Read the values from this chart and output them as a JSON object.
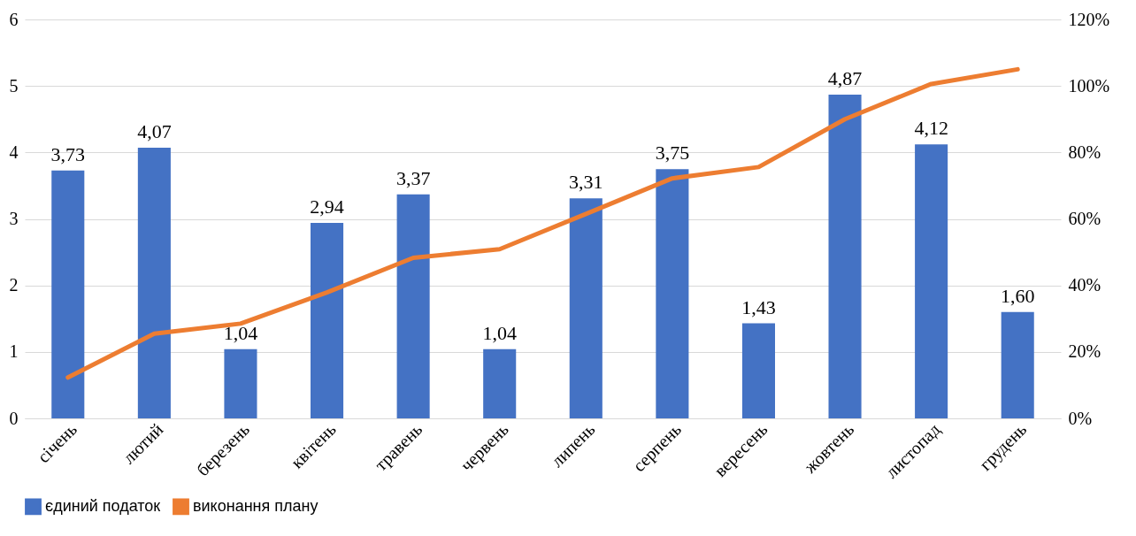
{
  "chart_data": {
    "type": "bar",
    "categories": [
      "січень",
      "лютий",
      "березень",
      "квітень",
      "травень",
      "червень",
      "липень",
      "серпень",
      "вересень",
      "жовтень",
      "листопад",
      "грудень"
    ],
    "series": [
      {
        "name": "єдиний податок",
        "color": "#4472c4",
        "values": [
          3.73,
          4.07,
          1.04,
          2.94,
          3.37,
          1.04,
          3.31,
          3.75,
          1.43,
          4.87,
          4.12,
          1.6
        ],
        "value_labels": [
          "3,73",
          "4,07",
          "1,04",
          "2,94",
          "3,37",
          "1,04",
          "3,31",
          "3,75",
          "1,43",
          "4,87",
          "4,12",
          "1,60"
        ]
      },
      {
        "name": "виконання плану",
        "type": "line",
        "axis": "y2",
        "color": "#ed7d31",
        "values": [
          12.3,
          25.5,
          28.5,
          37.9,
          48.3,
          50.9,
          61.5,
          72.2,
          75.6,
          90,
          100.6,
          105
        ]
      }
    ],
    "ylim": [
      0,
      6
    ],
    "yticks": [
      0,
      1,
      2,
      3,
      4,
      5,
      6
    ],
    "y2lim": [
      0,
      120
    ],
    "y2ticks": [
      {
        "value": 0,
        "label": "0%"
      },
      {
        "value": 20,
        "label": "20%"
      },
      {
        "value": 40,
        "label": "40%"
      },
      {
        "value": 60,
        "label": "60%"
      },
      {
        "value": 80,
        "label": "80%"
      },
      {
        "value": 100,
        "label": "100%"
      },
      {
        "value": 120,
        "label": "120%"
      }
    ],
    "grid": "y",
    "legend": "bottom",
    "marker": "none",
    "line_style": "solid"
  }
}
